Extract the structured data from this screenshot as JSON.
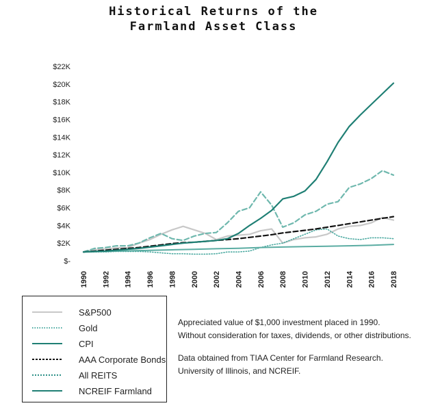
{
  "title": [
    "Historical Returns of the",
    "Farmland Asset Class"
  ],
  "notes": [
    [
      "Appreciated value of $1,000 investment placed in 1990.",
      "Without consideration for taxes, dividends, or other distributions."
    ],
    [
      "Data obtained from TIAA Center for Farmland Research.",
      "University of Illinois, and NCREIF."
    ]
  ],
  "legend": [
    {
      "label": "S&P500",
      "color": "#c8c8c8",
      "style": "solid"
    },
    {
      "label": "Gold",
      "color": "#4aa9a0",
      "style": "dotted"
    },
    {
      "label": "CPI",
      "color": "#1f7f74",
      "style": "solid"
    },
    {
      "label": "AAA Corporate Bonds",
      "color": "#111111",
      "style": "dashed"
    },
    {
      "label": "All REITS",
      "color": "#2a8f86",
      "style": "dotted"
    },
    {
      "label": "NCREIF Farmland",
      "color": "#1f7f74",
      "style": "solid"
    }
  ],
  "chart_data": {
    "type": "line",
    "title": "Historical Returns of the Farmland Asset Class",
    "xlim": [
      1990,
      2018
    ],
    "ylim": [
      0,
      22000
    ],
    "xticks": [
      "1990",
      "1992",
      "1994",
      "1996",
      "1998",
      "2000",
      "2002",
      "2004",
      "2006",
      "2008",
      "2010",
      "2012",
      "2014",
      "2016",
      "2018"
    ],
    "yticks": [
      "$-",
      "$2K",
      "$4K",
      "$6K",
      "$8K",
      "$10K",
      "$12K",
      "$14K",
      "$16K",
      "$18K",
      "$20K",
      "$22K"
    ],
    "grid": false,
    "series": [
      {
        "name": "S&P500",
        "color": "#c8c8c8",
        "style": "solid",
        "width": 2.2,
        "x": [
          1990,
          1991,
          1992,
          1993,
          1994,
          1995,
          1996,
          1997,
          1998,
          1999,
          2000,
          2001,
          2002,
          2003,
          2004,
          2005,
          2006,
          2007,
          2008,
          2009,
          2010,
          2011,
          2012,
          2013,
          2014,
          2015,
          2016,
          2017,
          2018
        ],
        "y": [
          1000,
          1250,
          1330,
          1470,
          1490,
          2000,
          2400,
          3000,
          3500,
          3900,
          3500,
          3100,
          2400,
          2800,
          2900,
          3000,
          3400,
          3600,
          2000,
          2400,
          2600,
          2700,
          3000,
          3600,
          3900,
          4000,
          4300,
          4900,
          4600
        ]
      },
      {
        "name": "Gold",
        "color": "#4aa9a0",
        "style": "dotted",
        "width": 1.6,
        "x": [
          1990,
          1991,
          1992,
          1993,
          1994,
          1995,
          1996,
          1997,
          1998,
          1999,
          2000,
          2001,
          2002,
          2003,
          2004,
          2005,
          2006,
          2007,
          2008,
          2009,
          2010,
          2011,
          2012,
          2013,
          2014,
          2015,
          2016,
          2017,
          2018
        ],
        "y": [
          1000,
          1000,
          1000,
          1050,
          1050,
          1050,
          1000,
          900,
          800,
          800,
          750,
          750,
          800,
          1000,
          1000,
          1100,
          1500,
          1800,
          2000,
          2500,
          3000,
          3500,
          3600,
          2800,
          2500,
          2400,
          2600,
          2600,
          2500
        ]
      },
      {
        "name": "All REITS",
        "color": "#6fb8ae",
        "style": "dashed",
        "width": 2.2,
        "x": [
          1990,
          1991,
          1992,
          1993,
          1994,
          1995,
          1996,
          1997,
          1998,
          1999,
          2000,
          2001,
          2002,
          2003,
          2004,
          2005,
          2006,
          2007,
          2008,
          2009,
          2010,
          2011,
          2012,
          2013,
          2014,
          2015,
          2016,
          2017,
          2018
        ],
        "y": [
          1000,
          1400,
          1500,
          1700,
          1700,
          2000,
          2600,
          3100,
          2500,
          2300,
          2800,
          3100,
          3200,
          4300,
          5600,
          6000,
          7800,
          6300,
          3800,
          4300,
          5200,
          5600,
          6400,
          6700,
          8300,
          8700,
          9300,
          10200,
          9700
        ]
      },
      {
        "name": "AAA Corporate Bonds",
        "color": "#111111",
        "style": "dashed",
        "width": 2.2,
        "x": [
          1990,
          1991,
          1992,
          1993,
          1994,
          1995,
          1996,
          1997,
          1998,
          1999,
          2000,
          2001,
          2002,
          2003,
          2004,
          2005,
          2006,
          2007,
          2008,
          2009,
          2010,
          2011,
          2012,
          2013,
          2014,
          2015,
          2016,
          2017,
          2018
        ],
        "y": [
          1000,
          1100,
          1200,
          1300,
          1400,
          1500,
          1650,
          1800,
          1950,
          2050,
          2100,
          2200,
          2300,
          2400,
          2500,
          2650,
          2800,
          2950,
          3150,
          3300,
          3450,
          3600,
          3800,
          4000,
          4200,
          4400,
          4600,
          4800,
          5000
        ]
      },
      {
        "name": "CPI",
        "color": "#5aaca2",
        "style": "solid",
        "width": 2.0,
        "x": [
          1990,
          1992,
          1994,
          1996,
          1998,
          2000,
          2002,
          2004,
          2006,
          2008,
          2010,
          2012,
          2014,
          2016,
          2018
        ],
        "y": [
          1000,
          1070,
          1120,
          1180,
          1240,
          1300,
          1360,
          1420,
          1500,
          1560,
          1600,
          1650,
          1700,
          1750,
          1850
        ]
      },
      {
        "name": "NCREIF Farmland",
        "color": "#1f7f74",
        "style": "solid",
        "width": 2.2,
        "x": [
          1990,
          1991,
          1992,
          1993,
          1994,
          1995,
          1996,
          1997,
          1998,
          1999,
          2000,
          2001,
          2002,
          2003,
          2004,
          2005,
          2006,
          2007,
          2008,
          2009,
          2010,
          2011,
          2012,
          2013,
          2014,
          2015,
          2016,
          2017,
          2018
        ],
        "y": [
          1000,
          1050,
          1100,
          1200,
          1300,
          1400,
          1550,
          1700,
          1850,
          2000,
          2100,
          2200,
          2300,
          2500,
          3100,
          4000,
          4800,
          5700,
          7000,
          7300,
          7900,
          9200,
          11200,
          13400,
          15200,
          16500,
          17700,
          18900,
          20100
        ]
      }
    ]
  }
}
